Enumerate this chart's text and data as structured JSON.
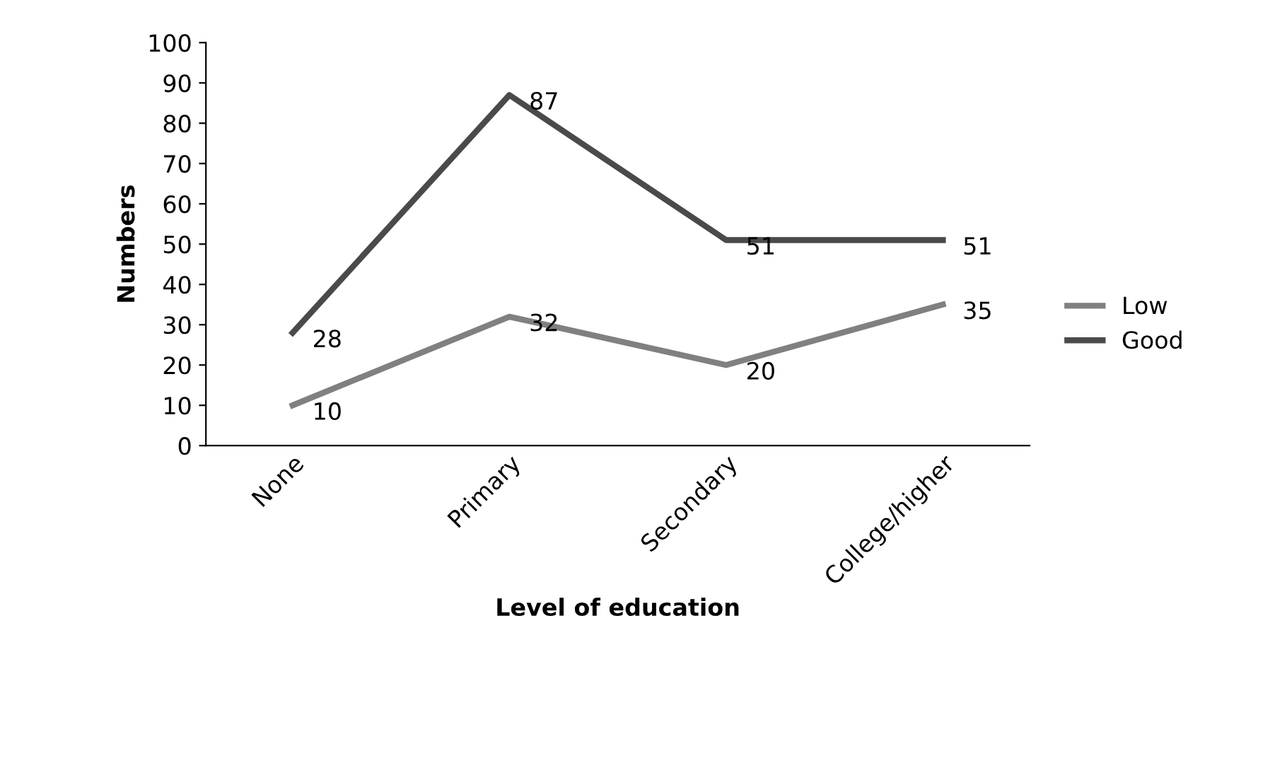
{
  "chart_data": {
    "type": "line",
    "xlabel": "Level of education",
    "ylabel": "Numbers",
    "categories": [
      "None",
      "Primary",
      "Secondary",
      "College/higher"
    ],
    "series": [
      {
        "name": "Low",
        "color": "#808080",
        "values": [
          10,
          32,
          20,
          35
        ]
      },
      {
        "name": "Good",
        "color": "#4a4a4a",
        "values": [
          28,
          87,
          51,
          51
        ]
      }
    ],
    "ylim": [
      0,
      100
    ],
    "yticks": [
      0,
      10,
      20,
      30,
      40,
      50,
      60,
      70,
      80,
      90,
      100
    ],
    "grid": false,
    "legend": "right",
    "marker": "none",
    "line_style": "solid",
    "data_labels": true
  }
}
